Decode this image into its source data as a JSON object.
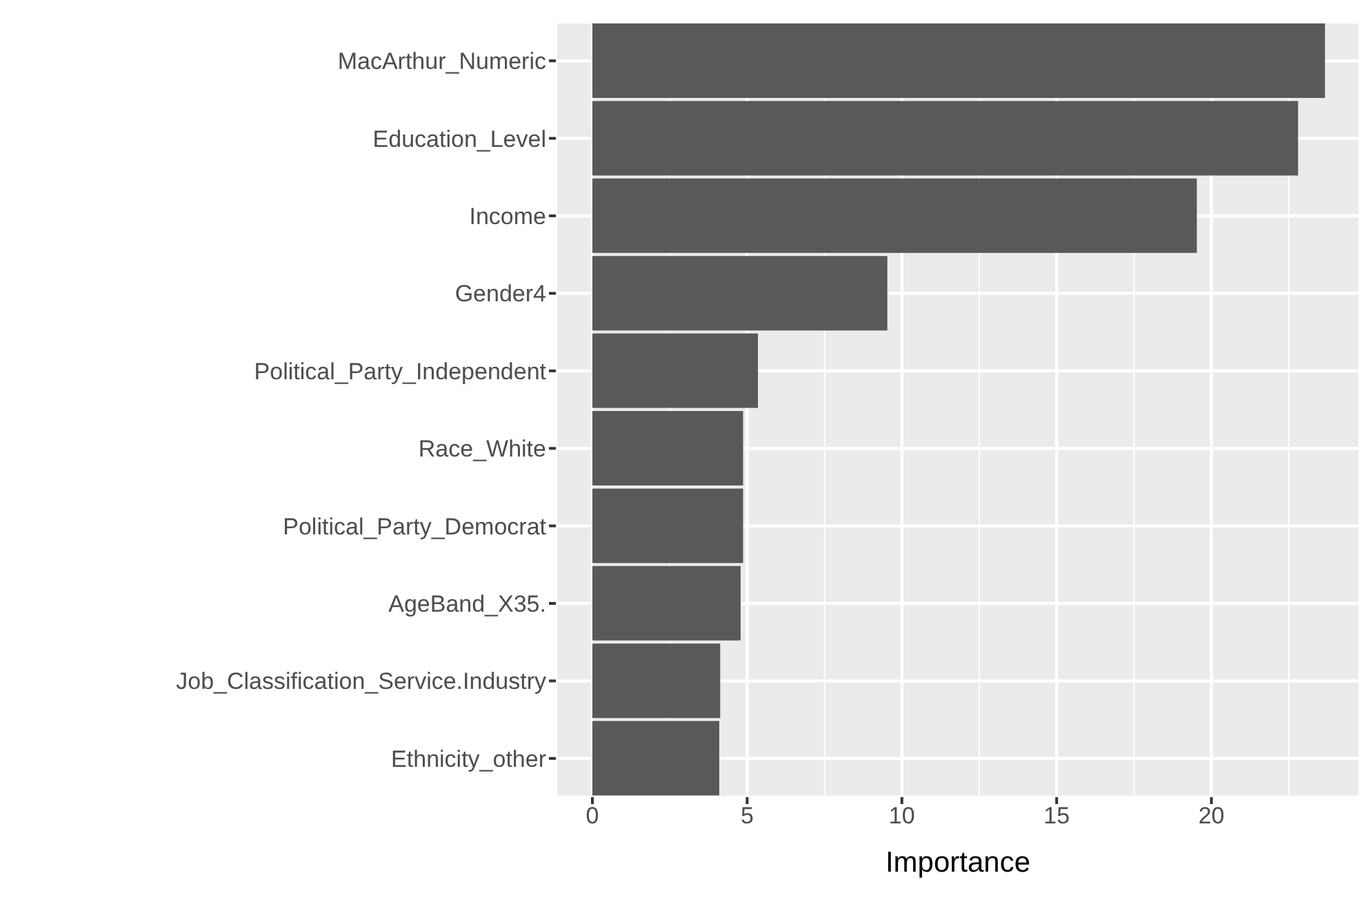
{
  "chart_data": {
    "type": "bar",
    "orientation": "horizontal",
    "xlabel": "Importance",
    "categories": [
      "MacArthur_Numeric",
      "Education_Level",
      "Income",
      "Gender4",
      "Political_Party_Independent",
      "Race_White",
      "Political_Party_Democrat",
      "AgeBand_X35.",
      "Job_Classification_Service.Industry",
      "Ethnicity_other"
    ],
    "values": [
      23.67,
      22.8,
      19.53,
      9.53,
      5.35,
      4.87,
      4.87,
      4.79,
      4.13,
      4.1
    ],
    "color": "#595959",
    "xlim": [
      -1.18,
      24.8
    ],
    "xticks": [
      0,
      5,
      10,
      15,
      20
    ],
    "grid": true
  }
}
